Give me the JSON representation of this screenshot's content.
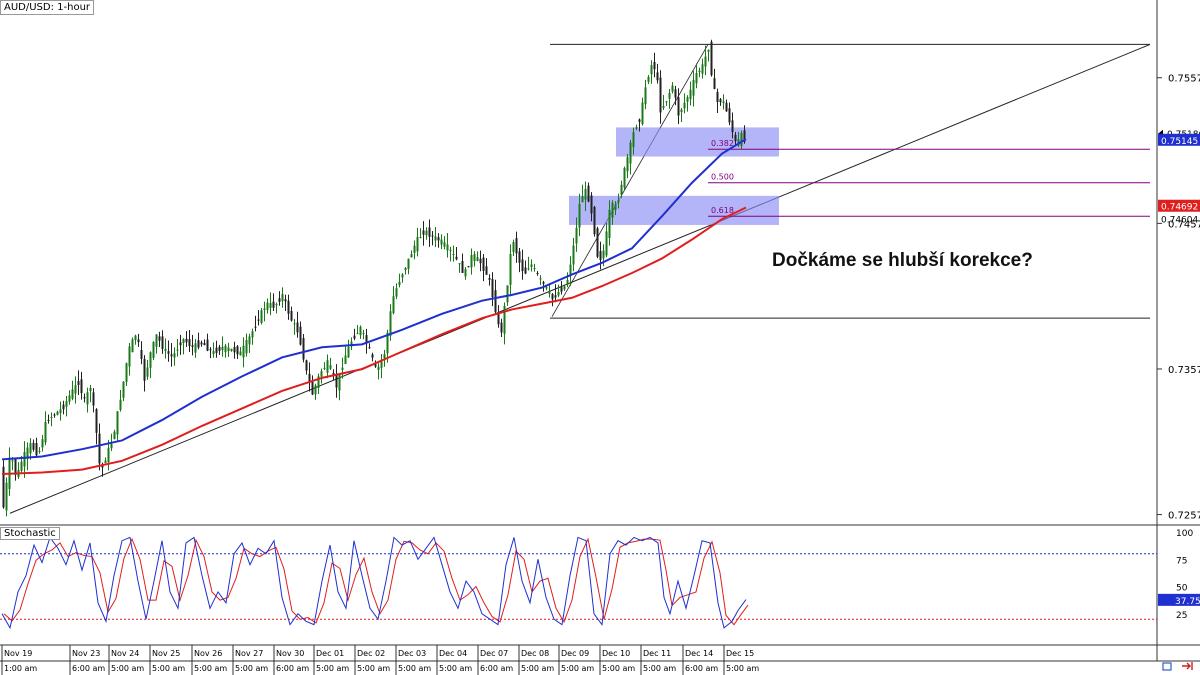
{
  "title": "AUD/USD: 1-hour",
  "indicator_label": "Stochastic",
  "annotation": "Dočkáme se hlubší korekce?",
  "colors": {
    "bull": "#1a7a1a",
    "bear": "#222222",
    "ma_fast": "#1f2fd0",
    "ma_slow": "#e01e1e",
    "fib": "#800080",
    "zone": "#8c8cf5",
    "stoch_k": "#1f2fd0",
    "stoch_d": "#e01e1e"
  },
  "chart_data": {
    "type": "candlestick",
    "price_axis": {
      "min": 0.7252,
      "max": 0.7605,
      "ticks": [
        "0.75571",
        "0.74571",
        "0.73571",
        "0.72571"
      ],
      "tick_values": [
        0.75571,
        0.74571,
        0.73571,
        0.72571
      ]
    },
    "time_labels": [
      "Nov 19",
      "Nov 23",
      "Nov 24",
      "Nov 25",
      "Nov 26",
      "Nov 27",
      "Nov 30",
      "Dec 01",
      "Dec 02",
      "Dec 03",
      "Dec 04",
      "Dec 07",
      "Dec 08",
      "Dec 09",
      "Dec 10",
      "Dec 11",
      "Dec 14",
      "Dec 15"
    ],
    "time_sublabels": [
      "1:00 am",
      "6:00 am",
      "5:00 am",
      "5:00 am",
      "5:00 am",
      "5:00 am",
      "6:00 am",
      "5:00 am",
      "5:00 am",
      "5:00 am",
      "5:00 am",
      "6:00 am",
      "5:00 am",
      "5:00 am",
      "5:00 am",
      "5:00 am",
      "6:00 am",
      "5:00 am"
    ],
    "price_path": [
      [
        0,
        0.729
      ],
      [
        3,
        0.7262
      ],
      [
        6,
        0.7278
      ],
      [
        10,
        0.73
      ],
      [
        16,
        0.7282
      ],
      [
        22,
        0.7296
      ],
      [
        30,
        0.7305
      ],
      [
        38,
        0.7298
      ],
      [
        46,
        0.7322
      ],
      [
        54,
        0.7326
      ],
      [
        62,
        0.733
      ],
      [
        70,
        0.734
      ],
      [
        78,
        0.7348
      ],
      [
        84,
        0.7335
      ],
      [
        90,
        0.7345
      ],
      [
        95,
        0.732
      ],
      [
        100,
        0.7285
      ],
      [
        106,
        0.7298
      ],
      [
        112,
        0.7308
      ],
      [
        118,
        0.733
      ],
      [
        124,
        0.7352
      ],
      [
        128,
        0.737
      ],
      [
        136,
        0.7382
      ],
      [
        144,
        0.735
      ],
      [
        150,
        0.7368
      ],
      [
        156,
        0.738
      ],
      [
        164,
        0.737
      ],
      [
        172,
        0.7365
      ],
      [
        182,
        0.7378
      ],
      [
        192,
        0.7372
      ],
      [
        202,
        0.7375
      ],
      [
        212,
        0.7368
      ],
      [
        222,
        0.7372
      ],
      [
        232,
        0.737
      ],
      [
        240,
        0.7368
      ],
      [
        250,
        0.738
      ],
      [
        258,
        0.7392
      ],
      [
        266,
        0.7402
      ],
      [
        274,
        0.74
      ],
      [
        282,
        0.7408
      ],
      [
        290,
        0.7392
      ],
      [
        298,
        0.7382
      ],
      [
        306,
        0.7355
      ],
      [
        312,
        0.734
      ],
      [
        320,
        0.7355
      ],
      [
        328,
        0.7362
      ],
      [
        336,
        0.7345
      ],
      [
        344,
        0.7365
      ],
      [
        352,
        0.7378
      ],
      [
        360,
        0.7385
      ],
      [
        368,
        0.7372
      ],
      [
        376,
        0.7355
      ],
      [
        384,
        0.7368
      ],
      [
        392,
        0.7405
      ],
      [
        400,
        0.742
      ],
      [
        408,
        0.7432
      ],
      [
        416,
        0.7445
      ],
      [
        424,
        0.7452
      ],
      [
        432,
        0.7448
      ],
      [
        440,
        0.7445
      ],
      [
        448,
        0.744
      ],
      [
        456,
        0.7432
      ],
      [
        464,
        0.7422
      ],
      [
        472,
        0.7436
      ],
      [
        480,
        0.743
      ],
      [
        488,
        0.742
      ],
      [
        496,
        0.7395
      ],
      [
        500,
        0.7378
      ],
      [
        506,
        0.741
      ],
      [
        512,
        0.7448
      ],
      [
        518,
        0.7432
      ],
      [
        524,
        0.7422
      ],
      [
        530,
        0.743
      ],
      [
        538,
        0.742
      ],
      [
        546,
        0.7412
      ],
      [
        552,
        0.7405
      ],
      [
        558,
        0.741
      ],
      [
        566,
        0.7415
      ],
      [
        574,
        0.7445
      ],
      [
        580,
        0.7475
      ],
      [
        586,
        0.748
      ],
      [
        592,
        0.7462
      ],
      [
        598,
        0.743
      ],
      [
        604,
        0.744
      ],
      [
        610,
        0.747
      ],
      [
        616,
        0.7468
      ],
      [
        622,
        0.7488
      ],
      [
        628,
        0.7505
      ],
      [
        634,
        0.7522
      ],
      [
        640,
        0.753
      ],
      [
        646,
        0.7555
      ],
      [
        652,
        0.7568
      ],
      [
        656,
        0.756
      ],
      [
        660,
        0.7535
      ],
      [
        666,
        0.7542
      ],
      [
        672,
        0.7552
      ],
      [
        678,
        0.7532
      ],
      [
        684,
        0.754
      ],
      [
        690,
        0.7548
      ],
      [
        696,
        0.756
      ],
      [
        702,
        0.7565
      ],
      [
        708,
        0.7578
      ],
      [
        712,
        0.7555
      ],
      [
        716,
        0.754
      ],
      [
        722,
        0.7542
      ],
      [
        728,
        0.753
      ],
      [
        732,
        0.752
      ],
      [
        736,
        0.751
      ],
      [
        740,
        0.7518
      ],
      [
        744,
        0.7515
      ]
    ],
    "ma_fast": [
      [
        0,
        0.7295
      ],
      [
        40,
        0.7297
      ],
      [
        80,
        0.7302
      ],
      [
        120,
        0.7308
      ],
      [
        160,
        0.7322
      ],
      [
        200,
        0.7338
      ],
      [
        240,
        0.7352
      ],
      [
        280,
        0.7365
      ],
      [
        320,
        0.7372
      ],
      [
        360,
        0.7374
      ],
      [
        400,
        0.7384
      ],
      [
        440,
        0.7395
      ],
      [
        480,
        0.7404
      ],
      [
        510,
        0.7408
      ],
      [
        540,
        0.7413
      ],
      [
        570,
        0.7422
      ],
      [
        600,
        0.743
      ],
      [
        630,
        0.744
      ],
      [
        660,
        0.7462
      ],
      [
        690,
        0.7485
      ],
      [
        720,
        0.7505
      ],
      [
        744,
        0.7515
      ]
    ],
    "ma_slow": [
      [
        0,
        0.7285
      ],
      [
        40,
        0.7286
      ],
      [
        80,
        0.7288
      ],
      [
        120,
        0.7294
      ],
      [
        160,
        0.7305
      ],
      [
        200,
        0.7318
      ],
      [
        240,
        0.733
      ],
      [
        280,
        0.7342
      ],
      [
        320,
        0.7351
      ],
      [
        360,
        0.7357
      ],
      [
        400,
        0.7369
      ],
      [
        440,
        0.7381
      ],
      [
        480,
        0.7392
      ],
      [
        510,
        0.7398
      ],
      [
        540,
        0.7402
      ],
      [
        570,
        0.7406
      ],
      [
        600,
        0.7414
      ],
      [
        630,
        0.7423
      ],
      [
        660,
        0.7433
      ],
      [
        690,
        0.7446
      ],
      [
        720,
        0.746
      ],
      [
        744,
        0.7468
      ]
    ],
    "stochastic": {
      "ticks": [
        100,
        75,
        50,
        25
      ],
      "overbought": 80,
      "oversold": 20,
      "k": [
        [
          0,
          25
        ],
        [
          8,
          12
        ],
        [
          16,
          45
        ],
        [
          24,
          60
        ],
        [
          32,
          88
        ],
        [
          40,
          72
        ],
        [
          48,
          95
        ],
        [
          56,
          85
        ],
        [
          64,
          70
        ],
        [
          72,
          92
        ],
        [
          80,
          65
        ],
        [
          88,
          90
        ],
        [
          96,
          35
        ],
        [
          104,
          18
        ],
        [
          112,
          60
        ],
        [
          120,
          92
        ],
        [
          128,
          95
        ],
        [
          136,
          55
        ],
        [
          144,
          20
        ],
        [
          152,
          55
        ],
        [
          160,
          92
        ],
        [
          168,
          45
        ],
        [
          176,
          30
        ],
        [
          184,
          90
        ],
        [
          192,
          95
        ],
        [
          200,
          60
        ],
        [
          208,
          30
        ],
        [
          216,
          45
        ],
        [
          224,
          35
        ],
        [
          232,
          80
        ],
        [
          240,
          90
        ],
        [
          248,
          70
        ],
        [
          256,
          85
        ],
        [
          264,
          80
        ],
        [
          272,
          92
        ],
        [
          280,
          40
        ],
        [
          288,
          15
        ],
        [
          296,
          25
        ],
        [
          304,
          18
        ],
        [
          312,
          15
        ],
        [
          320,
          55
        ],
        [
          328,
          88
        ],
        [
          336,
          45
        ],
        [
          344,
          30
        ],
        [
          352,
          92
        ],
        [
          360,
          60
        ],
        [
          368,
          30
        ],
        [
          376,
          20
        ],
        [
          384,
          55
        ],
        [
          392,
          95
        ],
        [
          400,
          88
        ],
        [
          408,
          92
        ],
        [
          416,
          75
        ],
        [
          424,
          85
        ],
        [
          432,
          95
        ],
        [
          440,
          70
        ],
        [
          448,
          45
        ],
        [
          456,
          30
        ],
        [
          464,
          55
        ],
        [
          472,
          45
        ],
        [
          480,
          25
        ],
        [
          488,
          20
        ],
        [
          496,
          15
        ],
        [
          504,
          70
        ],
        [
          512,
          95
        ],
        [
          520,
          55
        ],
        [
          528,
          35
        ],
        [
          536,
          75
        ],
        [
          544,
          40
        ],
        [
          552,
          20
        ],
        [
          560,
          15
        ],
        [
          568,
          60
        ],
        [
          576,
          95
        ],
        [
          584,
          92
        ],
        [
          592,
          25
        ],
        [
          600,
          15
        ],
        [
          608,
          80
        ],
        [
          616,
          92
        ],
        [
          624,
          88
        ],
        [
          632,
          95
        ],
        [
          640,
          92
        ],
        [
          648,
          95
        ],
        [
          656,
          90
        ],
        [
          662,
          40
        ],
        [
          668,
          25
        ],
        [
          676,
          55
        ],
        [
          684,
          30
        ],
        [
          692,
          60
        ],
        [
          700,
          92
        ],
        [
          708,
          90
        ],
        [
          716,
          35
        ],
        [
          722,
          12
        ],
        [
          730,
          18
        ],
        [
          736,
          28
        ],
        [
          744,
          38
        ]
      ],
      "k_last": "37.75"
    }
  },
  "levels": {
    "top_line_price": 0.758,
    "bottom_line_price": 0.7392,
    "fib": [
      {
        "label": "0.382",
        "price": 0.7508
      },
      {
        "label": "0.500",
        "price": 0.7485
      },
      {
        "label": "0.618",
        "price": 0.7462
      }
    ],
    "price_tags": {
      "current": "0.75186",
      "current_sub": "0.75145",
      "ma_slow_tag": "0.74692",
      "ma_slow_sub": "0.74604"
    }
  },
  "footer_icons": [
    "chart-window-icon",
    "arrow-right-icon"
  ]
}
